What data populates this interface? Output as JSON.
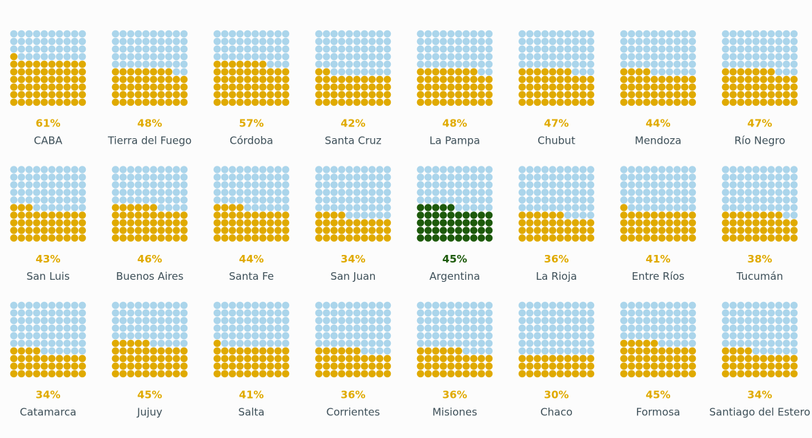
{
  "chart_data": {
    "type": "waffle",
    "categories": [
      "CABA",
      "Tierra del Fuego",
      "Córdoba",
      "Santa Cruz",
      "La Pampa",
      "Chubut",
      "Mendoza",
      "Río Negro",
      "San Luis",
      "Buenos Aires",
      "Santa Fe",
      "San Juan",
      "Argentina",
      "La Rioja",
      "Entre Ríos",
      "Tucumán",
      "Catamarca",
      "Jujuy",
      "Salta",
      "Corrientes",
      "Misiones",
      "Chaco",
      "Formosa",
      "Santiago del Estero"
    ],
    "values": [
      61,
      48,
      57,
      42,
      48,
      47,
      44,
      47,
      43,
      46,
      44,
      34,
      45,
      36,
      41,
      38,
      34,
      45,
      41,
      36,
      36,
      30,
      45,
      34
    ],
    "value_labels": [
      "61%",
      "48%",
      "57%",
      "42%",
      "48%",
      "47%",
      "44%",
      "47%",
      "43%",
      "46%",
      "44%",
      "34%",
      "45%",
      "36%",
      "41%",
      "38%",
      "34%",
      "45%",
      "41%",
      "36%",
      "36%",
      "30%",
      "45%",
      "34%"
    ],
    "colors": [
      "#e0aa00",
      "#e0aa00",
      "#e0aa00",
      "#e0aa00",
      "#e0aa00",
      "#e0aa00",
      "#e0aa00",
      "#e0aa00",
      "#e0aa00",
      "#e0aa00",
      "#e0aa00",
      "#e0aa00",
      "#1d5a0b",
      "#e0aa00",
      "#e0aa00",
      "#e0aa00",
      "#e0aa00",
      "#e0aa00",
      "#e0aa00",
      "#e0aa00",
      "#e0aa00",
      "#e0aa00",
      "#e0aa00",
      "#e0aa00"
    ],
    "empty_color": "#abd5eb"
  }
}
